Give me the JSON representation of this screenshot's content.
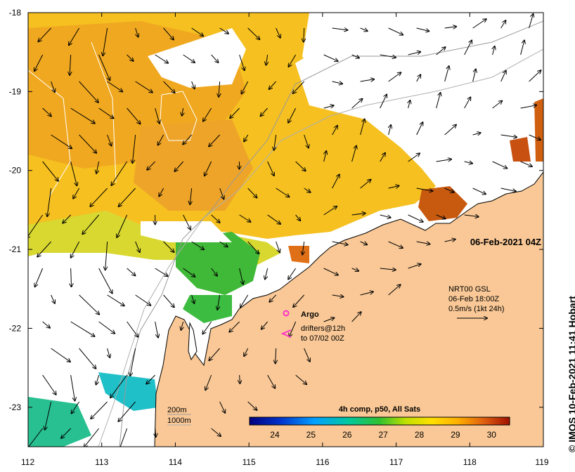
{
  "map": {
    "timestamp": "06-Feb-2021 04Z",
    "y_ticks": [
      "-18",
      "-19",
      "-20",
      "-21",
      "-22",
      "-23"
    ],
    "x_ticks": [
      "112",
      "113",
      "114",
      "115",
      "116",
      "117",
      "118",
      "119"
    ],
    "lon_range": [
      112,
      119
    ],
    "lat_range": [
      -23.5,
      -18
    ]
  },
  "legend": {
    "argo_label": "Argo",
    "drifters_line1": "drifters@12h",
    "drifters_line2": "to 07/02 00Z",
    "current_line1": "NRT00 GSL",
    "current_line2": "06-Feb 18:00Z",
    "current_line3": "0.5m/s (1kt 24h)",
    "depth_200": "200m",
    "depth_1000": "1000m"
  },
  "colorbar": {
    "title": "4h comp, p50, All Sats",
    "ticks": [
      "24",
      "25",
      "26",
      "27",
      "28",
      "29",
      "30"
    ],
    "range": [
      23.3,
      30.5
    ]
  },
  "credit": "© IMOS 10-Feb-2021 11:41 Hobart",
  "colors": {
    "land": "#f9c896",
    "warm": "#f0b020",
    "hot": "#c84a10",
    "cool": "#50c040",
    "argo": "#ff33cc"
  }
}
